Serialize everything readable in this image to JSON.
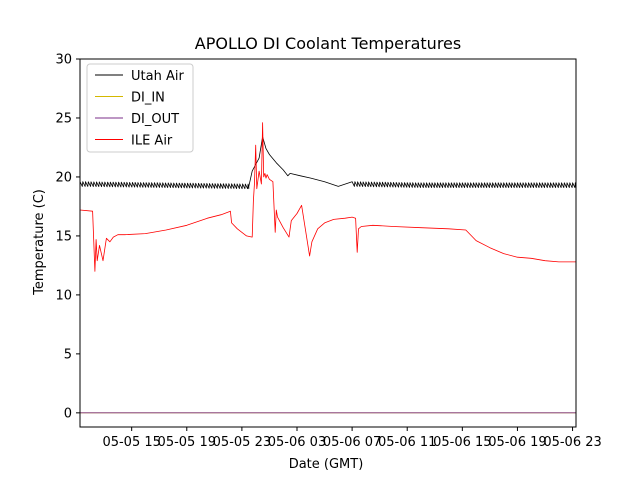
{
  "chart_data": {
    "type": "line",
    "title": "APOLLO DI Coolant Temperatures",
    "xlabel": "Date (GMT)",
    "ylabel": "Temperature (C)",
    "xlim": [
      "05-05 11:15",
      "05-06 23:15"
    ],
    "ylim": [
      -1.2,
      30
    ],
    "xticks": [
      "05-05 15",
      "05-05 19",
      "05-05 23",
      "05-06 03",
      "05-06 07",
      "05-06 11",
      "05-06 15",
      "05-06 19",
      "05-06 23"
    ],
    "xtick_values": [
      "05-05 15:00",
      "05-05 19:00",
      "05-05 23:00",
      "05-06 03:00",
      "05-06 07:00",
      "05-06 11:00",
      "05-06 15:00",
      "05-06 19:00",
      "05-06 23:00"
    ],
    "yticks": [
      0,
      5,
      10,
      15,
      20,
      25,
      30
    ],
    "grid": false,
    "legend_position": "upper-left",
    "series": [
      {
        "name": "Utah Air",
        "color": "#000000",
        "style": "sawtooth",
        "amplitude": 0.4,
        "period_minutes": 12,
        "x": [
          "05-05 11:15",
          "05-05 23:30",
          "05-05 23:45",
          "05-06 00:15",
          "05-06 00:30",
          "05-06 00:45",
          "05-06 01:00",
          "05-06 01:30",
          "05-06 02:00",
          "05-06 02:20",
          "05-06 02:30",
          "05-06 03:15",
          "05-06 04:00",
          "05-06 05:00",
          "05-06 06:00",
          "05-06 07:00",
          "05-06 12:00",
          "05-06 18:00",
          "05-06 23:15"
        ],
        "values": [
          19.4,
          19.2,
          20.5,
          21.6,
          23.4,
          22.4,
          21.9,
          21.2,
          20.6,
          20.1,
          20.3,
          20.1,
          19.9,
          19.6,
          19.2,
          19.4,
          19.3,
          19.3,
          19.3
        ]
      },
      {
        "name": "DI_IN",
        "color": "#d4b800",
        "x": [
          "05-05 11:15",
          "05-06 23:15"
        ],
        "values": [
          0,
          0
        ]
      },
      {
        "name": "DI_OUT",
        "color": "#7b2f8a",
        "x": [
          "05-05 11:15",
          "05-06 23:15"
        ],
        "values": [
          0,
          0
        ]
      },
      {
        "name": "ILE Air",
        "color": "#ff0000",
        "x": [
          "05-05 11:15",
          "05-05 12:10",
          "05-05 12:20",
          "05-05 12:25",
          "05-05 12:30",
          "05-05 12:40",
          "05-05 12:55",
          "05-05 13:10",
          "05-05 13:25",
          "05-05 13:40",
          "05-05 14:00",
          "05-05 14:30",
          "05-05 16:00",
          "05-05 17:30",
          "05-05 19:00",
          "05-05 20:30",
          "05-05 21:30",
          "05-05 22:10",
          "05-05 22:15",
          "05-05 22:40",
          "05-05 23:20",
          "05-05 23:45",
          "05-05 23:50",
          "05-05 23:55",
          "05-06 00:00",
          "05-06 00:05",
          "05-06 00:15",
          "05-06 00:25",
          "05-06 00:30",
          "05-06 00:35",
          "05-06 00:40",
          "05-06 00:45",
          "05-06 00:50",
          "05-06 01:00",
          "05-06 01:15",
          "05-06 01:25",
          "05-06 01:30",
          "05-06 01:35",
          "05-06 02:00",
          "05-06 02:25",
          "05-06 02:35",
          "05-06 03:00",
          "05-06 03:20",
          "05-06 03:55",
          "05-06 04:05",
          "05-06 04:30",
          "05-06 05:00",
          "05-06 05:40",
          "05-06 06:30",
          "05-06 07:00",
          "05-06 07:15",
          "05-06 07:22",
          "05-06 07:28",
          "05-06 07:40",
          "05-06 08:30",
          "05-06 10:00",
          "05-06 12:00",
          "05-06 14:00",
          "05-06 15:15",
          "05-06 16:00",
          "05-06 17:00",
          "05-06 18:00",
          "05-06 19:00",
          "05-06 20:00",
          "05-06 21:00",
          "05-06 22:00",
          "05-06 23:15"
        ],
        "values": [
          17.2,
          17.1,
          12.0,
          14.7,
          12.9,
          14.2,
          12.9,
          14.8,
          14.5,
          14.9,
          15.1,
          15.1,
          15.2,
          15.5,
          15.9,
          16.5,
          16.8,
          17.1,
          16.1,
          15.6,
          15.0,
          14.9,
          18.0,
          19.5,
          22.7,
          19.0,
          20.5,
          19.4,
          24.6,
          20.0,
          20.3,
          19.9,
          20.2,
          19.8,
          19.6,
          15.3,
          17.2,
          16.6,
          15.7,
          14.9,
          16.3,
          16.9,
          17.6,
          13.3,
          14.5,
          15.6,
          16.1,
          16.4,
          16.5,
          16.6,
          16.5,
          13.6,
          15.6,
          15.8,
          15.9,
          15.8,
          15.7,
          15.6,
          15.5,
          14.6,
          14.0,
          13.5,
          13.2,
          13.1,
          12.9,
          12.8,
          12.8
        ]
      }
    ]
  }
}
